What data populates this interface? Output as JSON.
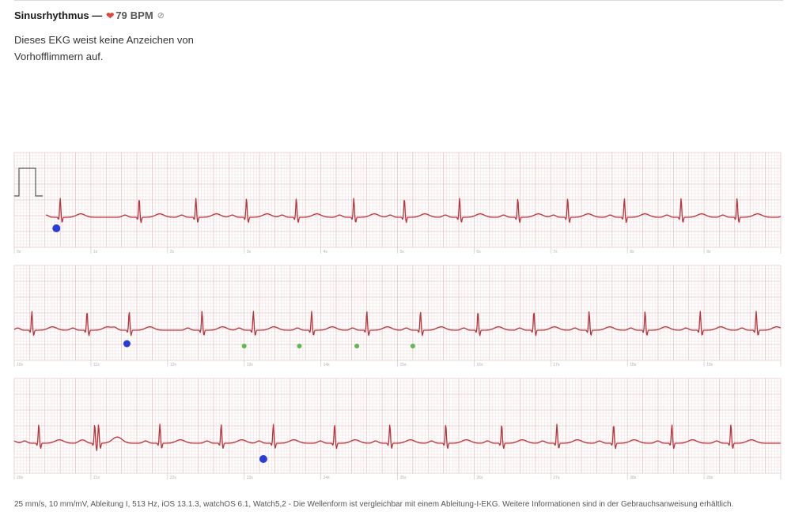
{
  "header": {
    "title": "Sinusrhythmus —",
    "heart_icon": "heart-icon",
    "bpm": "79",
    "bpm_unit": "BPM",
    "noinfo_icon": "circle-slash-icon",
    "description": "Dieses EKG weist keine Anzeichen von Vorhofflimmern auf."
  },
  "footer": {
    "text": "25 mm/s, 10 mm/mV, Ableitung I, 513 Hz, iOS 13.1.3, watchOS 6.1, Watch5,2 - Die Wellenform ist vergleichbar mit einem Ableitung-I-EKG. Weitere Informationen sind in der Gebrauchsanweisung erhältlich."
  },
  "colors": {
    "trace": "#b8343c",
    "grid_minor": "#f0dcdc",
    "grid_major": "#e0bcbc",
    "marker_blue": "#2a3ed6",
    "marker_green": "#5fb84a",
    "calibration": "#555555"
  },
  "chart_data": {
    "type": "line",
    "title": "",
    "xlabel": "",
    "ylabel": "",
    "x_unit": "s",
    "rows": [
      {
        "ticks": [
          "0s",
          "1s",
          "2s",
          "3s",
          "4s",
          "5s",
          "6s",
          "7s",
          "8s",
          "9s"
        ],
        "xlim": [
          0,
          10
        ]
      },
      {
        "ticks": [
          "10s",
          "11s",
          "12s",
          "13s",
          "14s",
          "15s",
          "16s",
          "17s",
          "18s",
          "19s"
        ],
        "xlim": [
          10,
          20
        ]
      },
      {
        "ticks": [
          "20s",
          "21s",
          "22s",
          "23s",
          "24s",
          "25s",
          "26s",
          "27s",
          "28s",
          "29s"
        ],
        "xlim": [
          20,
          30
        ]
      }
    ],
    "beats_s": [
      0.6,
      1.63,
      2.37,
      3.03,
      3.68,
      4.43,
      5.09,
      5.81,
      6.57,
      7.22,
      7.96,
      8.7,
      9.43,
      10.23,
      10.95,
      11.5,
      12.45,
      13.12,
      13.88,
      14.6,
      15.3,
      16.05,
      16.78,
      17.5,
      18.23,
      18.95,
      19.68,
      20.32,
      21.05,
      21.1,
      21.9,
      22.7,
      23.38,
      24.18,
      24.9,
      25.63,
      26.36,
      27.08,
      27.82,
      28.58,
      29.35
    ],
    "amplitude_mv": 0.4,
    "markers": [
      {
        "type": "blue",
        "time_s": 0.55,
        "size": "large"
      },
      {
        "type": "blue",
        "time_s": 11.47,
        "size": "medium"
      },
      {
        "type": "green",
        "time_s": 13.0,
        "size": "small"
      },
      {
        "type": "green",
        "time_s": 13.72,
        "size": "small"
      },
      {
        "type": "green",
        "time_s": 14.47,
        "size": "small"
      },
      {
        "type": "green",
        "time_s": 15.2,
        "size": "small"
      },
      {
        "type": "blue",
        "time_s": 23.25,
        "size": "large"
      }
    ],
    "grid": true
  }
}
